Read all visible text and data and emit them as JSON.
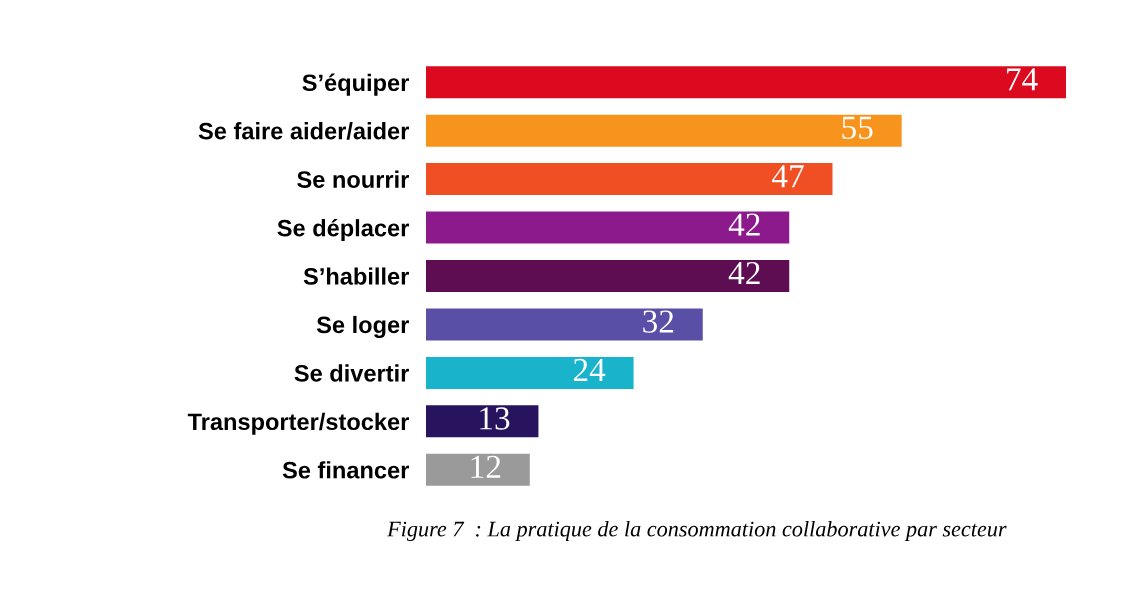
{
  "chart_data": {
    "type": "bar",
    "orientation": "horizontal",
    "data_labels": true,
    "categories": [
      "S’équiper",
      "Se faire aider/aider",
      "Se nourrir",
      "Se déplacer",
      "S’habiller",
      "Se loger",
      "Se divertir",
      "Transporter/stocker",
      "Se financer"
    ],
    "values": [
      74,
      55,
      47,
      42,
      42,
      32,
      24,
      13,
      12
    ],
    "colors": [
      "#dc0a1e",
      "#f7941d",
      "#f04e23",
      "#8c1a8c",
      "#5e0d52",
      "#5a4fa6",
      "#1ab3cc",
      "#27135e",
      "#9a9a9a"
    ],
    "annotations": [
      "Figure 7  : La pratique de la consommation collaborative par secteur"
    ]
  }
}
